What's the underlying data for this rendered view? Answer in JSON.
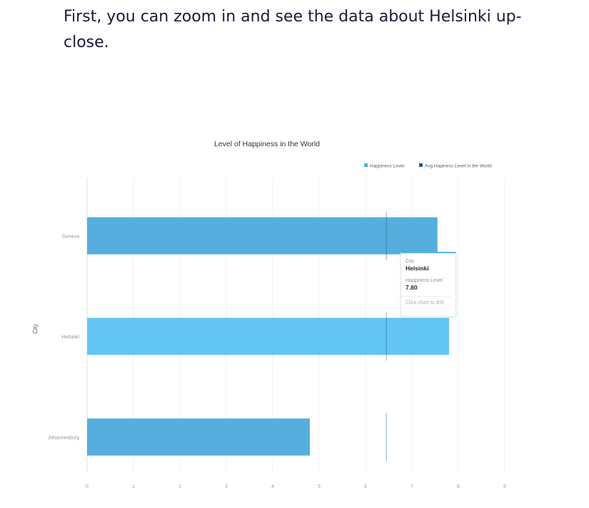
{
  "intro_text": "First, you can zoom in and see the data about Helsinki up-close.",
  "chart_data": {
    "type": "bar",
    "orientation": "horizontal",
    "title": "Level of Happiness in the World",
    "xlabel": "",
    "ylabel": "City",
    "categories": [
      "Geneva",
      "Helsinki",
      "Johannesburg"
    ],
    "series": [
      {
        "name": "Happiness Level",
        "values": [
          7.55,
          7.8,
          4.8
        ],
        "color": "#55aede",
        "highlight_color": "#63c5f3"
      },
      {
        "name": "Avg Hapiness Level in the World",
        "values": [
          6.45,
          6.45,
          6.45
        ],
        "color": "#1d5f8f",
        "mark": "vertical-line"
      }
    ],
    "highlighted_category": "Helsinki",
    "xlim": [
      0,
      9
    ],
    "xticks": [
      0,
      1,
      2,
      3,
      4,
      5,
      6,
      7,
      8,
      9
    ],
    "grid": true,
    "legend_position": "top-right"
  },
  "tooltip": {
    "city_label": "City",
    "city_value": "Helsinki",
    "level_label": "Happiness Level",
    "level_value": "7.80",
    "action": "Click chart to drill"
  }
}
